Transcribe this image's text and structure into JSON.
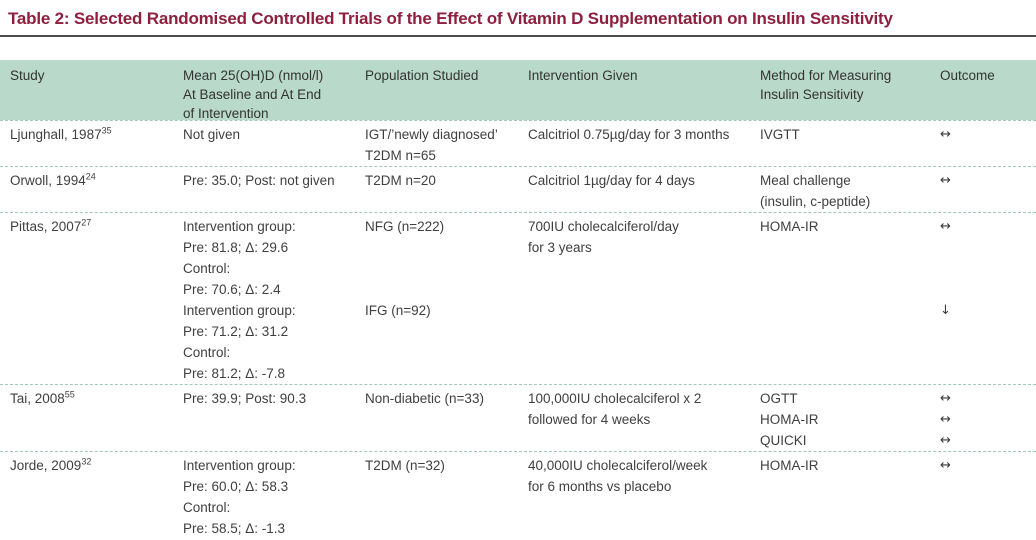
{
  "title": "Table 2: Selected Randomised Controlled Trials of the Effect of Vitamin D Supplementation on Insulin Sensitivity",
  "colors": {
    "title": "#8e1f3e",
    "title_rule": "#4b4b4b",
    "header_bg": "#b9d9ca",
    "row_divider": "#9ec9b9",
    "text": "#3f3f3f"
  },
  "icons": {
    "no_change_arrow": "↔",
    "decrease_arrow": "↓"
  },
  "table": {
    "column_order": [
      "study",
      "mean",
      "population",
      "intervention",
      "method",
      "outcome"
    ],
    "header": {
      "study": [
        "Study"
      ],
      "mean": [
        "Mean 25(OH)D (nmol/l)",
        "At Baseline and At End",
        "of Intervention"
      ],
      "population": [
        "Population Studied"
      ],
      "intervention": [
        "Intervention Given"
      ],
      "method": [
        "Method for Measuring",
        "Insulin Sensitivity"
      ],
      "outcome": [
        "Outcome"
      ]
    },
    "rows": [
      {
        "study": "Ljunghall, 1987",
        "ref": "35",
        "mean": [
          "Not given"
        ],
        "population": [
          "IGT/’newly diagnosed’",
          "T2DM n=65"
        ],
        "intervention": [
          "Calcitriol 0.75µg/day for 3 months"
        ],
        "method": [
          "IVGTT"
        ],
        "outcome": [
          "↔"
        ]
      },
      {
        "study": "Orwoll, 1994",
        "ref": "24",
        "mean": [
          "Pre: 35.0; Post: not given"
        ],
        "population": [
          "T2DM n=20"
        ],
        "intervention": [
          "Calcitriol 1µg/day for 4 days"
        ],
        "method": [
          "Meal challenge",
          "(insulin, c-peptide)"
        ],
        "outcome": [
          "↔"
        ]
      },
      {
        "study": "Pittas, 2007",
        "ref": "27",
        "mean": [
          "Intervention group:",
          "Pre: 81.8; Δ: 29.6",
          "Control:",
          "Pre: 70.6; Δ: 2.4",
          "Intervention group:",
          "Pre: 71.2; Δ: 31.2",
          "Control:",
          "Pre: 81.2; Δ: -7.8"
        ],
        "population": [
          "NFG (n=222)",
          "",
          "",
          "",
          "IFG (n=92)"
        ],
        "intervention": [
          "700IU cholecalciferol/day",
          "for 3 years"
        ],
        "method": [
          "HOMA-IR"
        ],
        "outcome": [
          "↔",
          "",
          "",
          "",
          "↓"
        ]
      },
      {
        "study": "Tai, 2008",
        "ref": "55",
        "mean": [
          "Pre: 39.9; Post: 90.3"
        ],
        "population": [
          "Non-diabetic (n=33)"
        ],
        "intervention": [
          "100,000IU cholecalciferol x 2",
          "followed for 4 weeks"
        ],
        "method": [
          "OGTT",
          "HOMA-IR",
          "QUICKI"
        ],
        "outcome": [
          "↔",
          "↔",
          "↔"
        ]
      },
      {
        "study": "Jorde, 2009",
        "ref": "32",
        "mean": [
          "Intervention group:",
          "Pre: 60.0; Δ: 58.3",
          "Control:",
          "Pre: 58.5; Δ: -1.3"
        ],
        "population": [
          "T2DM (n=32)"
        ],
        "intervention": [
          "40,000IU cholecalciferol/week",
          "for 6 months vs placebo"
        ],
        "method": [
          "HOMA-IR"
        ],
        "outcome": [
          "↔"
        ]
      }
    ]
  }
}
